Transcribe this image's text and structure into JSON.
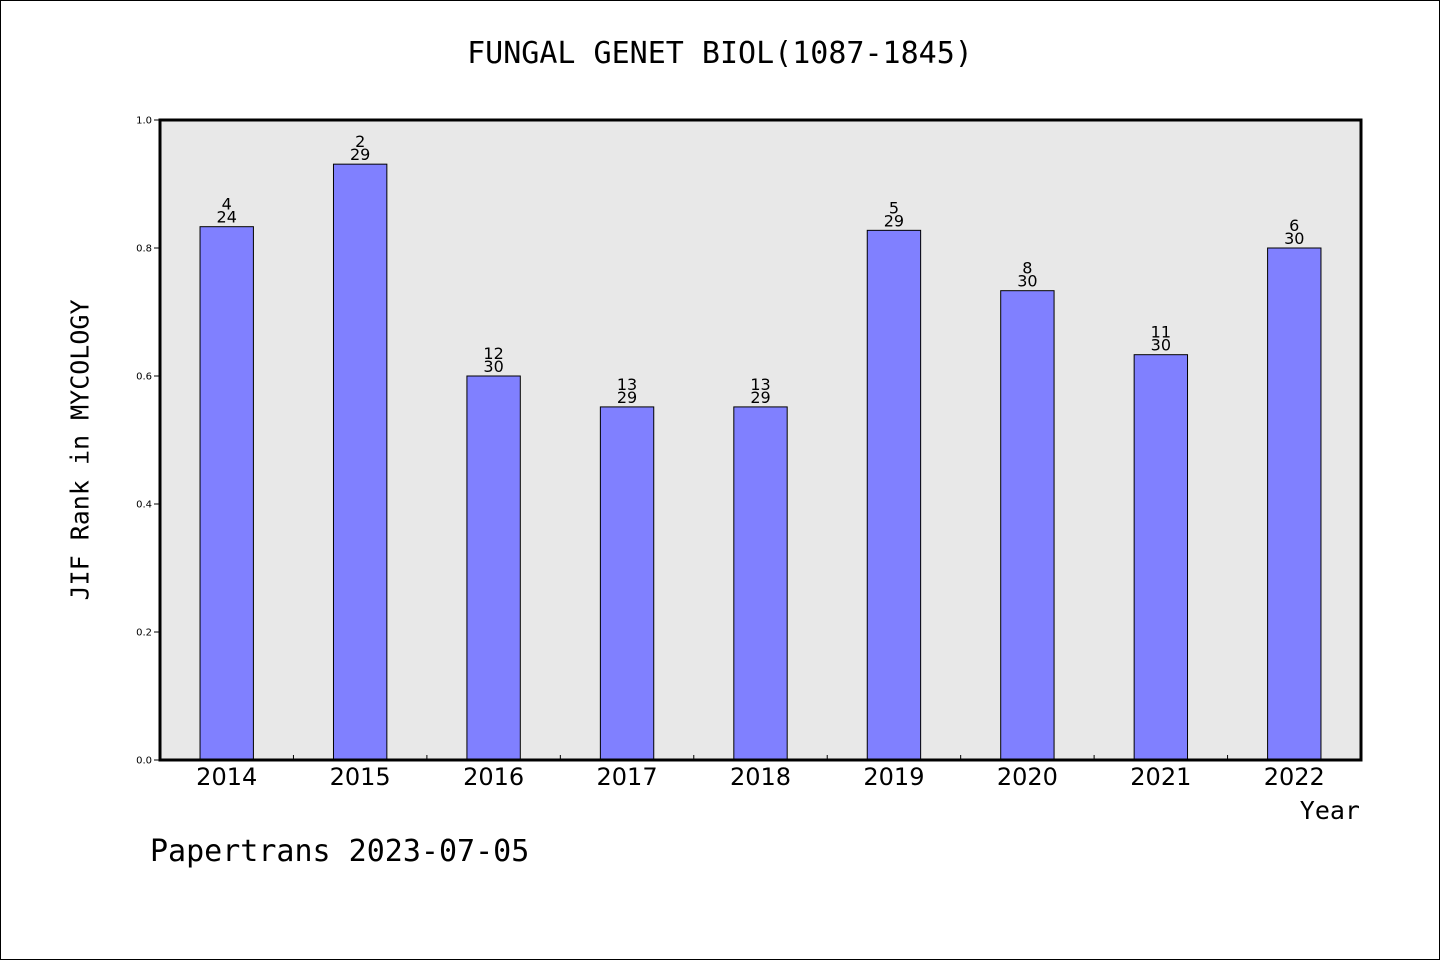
{
  "title": "FUNGAL GENET BIOL(1087-1845)",
  "footer": "Papertrans 2023-07-05",
  "colors": {
    "bar": "#8080ff",
    "plot_background": "#e8e8e8",
    "axis": "#000000"
  },
  "chart_data": {
    "type": "bar",
    "title": "FUNGAL GENET BIOL(1087-1845)",
    "xlabel": "Year",
    "ylabel": "JIF Rank in MYCOLOGY",
    "ylim": [
      0,
      1.0
    ],
    "yticks": [
      "0.0",
      "0.2",
      "0.4",
      "0.6",
      "0.8",
      "1.0"
    ],
    "grid": false,
    "categories": [
      "2014",
      "2015",
      "2016",
      "2017",
      "2018",
      "2019",
      "2020",
      "2021",
      "2022"
    ],
    "values": [
      0.8333,
      0.931,
      0.6,
      0.5517,
      0.5517,
      0.8276,
      0.7333,
      0.6333,
      0.8
    ],
    "rank": [
      "4",
      "2",
      "12",
      "13",
      "13",
      "5",
      "8",
      "11",
      "6"
    ],
    "total": [
      "24",
      "29",
      "30",
      "29",
      "29",
      "29",
      "30",
      "30",
      "30"
    ]
  }
}
